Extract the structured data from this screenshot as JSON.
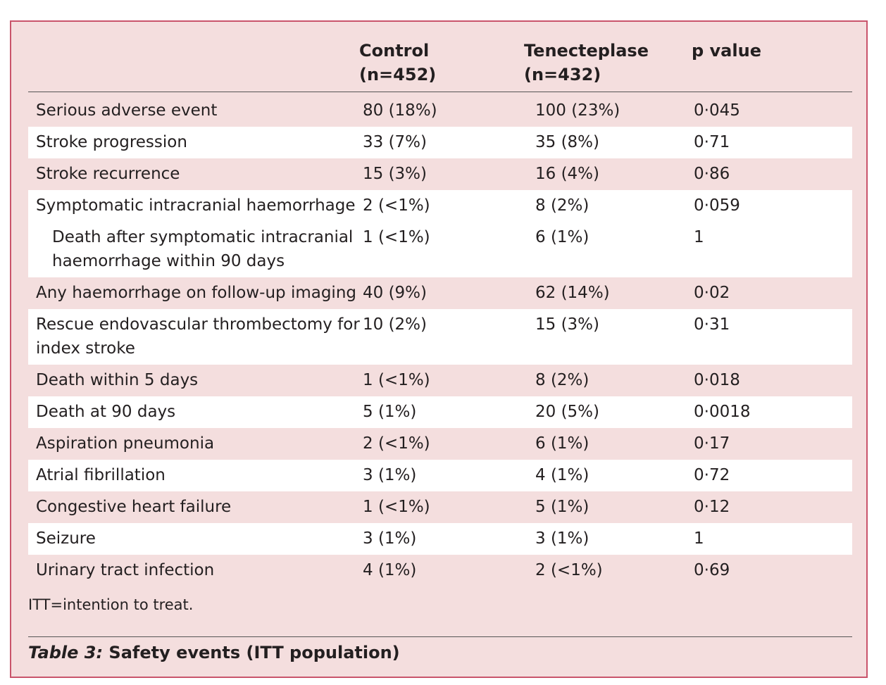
{
  "table": {
    "headers": {
      "control": [
        "Control",
        "(n=452)"
      ],
      "tenecteplase": [
        "Tenecteplase",
        "(n=432)"
      ],
      "p": "p value"
    },
    "rows": [
      {
        "label": [
          "Serious adverse event"
        ],
        "control": "80 (18%)",
        "tenecteplase": "100 (23%)",
        "p": "0·045",
        "alt": false
      },
      {
        "label": [
          "Stroke progression"
        ],
        "control": "33 (7%)",
        "tenecteplase": "35 (8%)",
        "p": "0·71",
        "alt": true
      },
      {
        "label": [
          "Stroke recurrence"
        ],
        "control": "15 (3%)",
        "tenecteplase": "16 (4%)",
        "p": "0·86",
        "alt": false
      },
      {
        "label": [
          "Symptomatic intracranial haemorrhage"
        ],
        "control": "2 (<1%)",
        "tenecteplase": "8 (2%)",
        "p": "0·059",
        "alt": true
      },
      {
        "label": [
          "Death after symptomatic intracranial",
          "haemorrhage within 90 days"
        ],
        "control": "1 (<1%)",
        "tenecteplase": "6 (1%)",
        "p": "1",
        "alt": true,
        "indent": true
      },
      {
        "label": [
          "Any haemorrhage on follow-up imaging"
        ],
        "control": "40 (9%)",
        "tenecteplase": "62 (14%)",
        "p": "0·02",
        "alt": false
      },
      {
        "label": [
          "Rescue endovascular thrombectomy for",
          "index stroke"
        ],
        "control": "10 (2%)",
        "tenecteplase": "15 (3%)",
        "p": "0·31",
        "alt": true
      },
      {
        "label": [
          "Death within 5 days"
        ],
        "control": "1 (<1%)",
        "tenecteplase": "8 (2%)",
        "p": "0·018",
        "alt": false
      },
      {
        "label": [
          "Death at 90 days"
        ],
        "control": "5 (1%)",
        "tenecteplase": "20 (5%)",
        "p": "0·0018",
        "alt": true
      },
      {
        "label": [
          "Aspiration pneumonia"
        ],
        "control": "2 (<1%)",
        "tenecteplase": "6 (1%)",
        "p": "0·17",
        "alt": false
      },
      {
        "label": [
          "Atrial fibrillation"
        ],
        "control": "3 (1%)",
        "tenecteplase": "4 (1%)",
        "p": "0·72",
        "alt": true
      },
      {
        "label": [
          "Congestive heart failure"
        ],
        "control": "1 (<1%)",
        "tenecteplase": "5 (1%)",
        "p": "0·12",
        "alt": false
      },
      {
        "label": [
          "Seizure"
        ],
        "control": "3 (1%)",
        "tenecteplase": "3 (1%)",
        "p": "1",
        "alt": true
      },
      {
        "label": [
          "Urinary tract infection"
        ],
        "control": "4 (1%)",
        "tenecteplase": "2 (<1%)",
        "p": "0·69",
        "alt": false
      }
    ]
  },
  "footnote": "ITT=intention to treat.",
  "caption": {
    "prefix": "Table 3:",
    "title": "Safety events (ITT population)"
  },
  "colors": {
    "background": "#f4dede",
    "border": "#c9546b",
    "alt_row": "#ffffff"
  }
}
